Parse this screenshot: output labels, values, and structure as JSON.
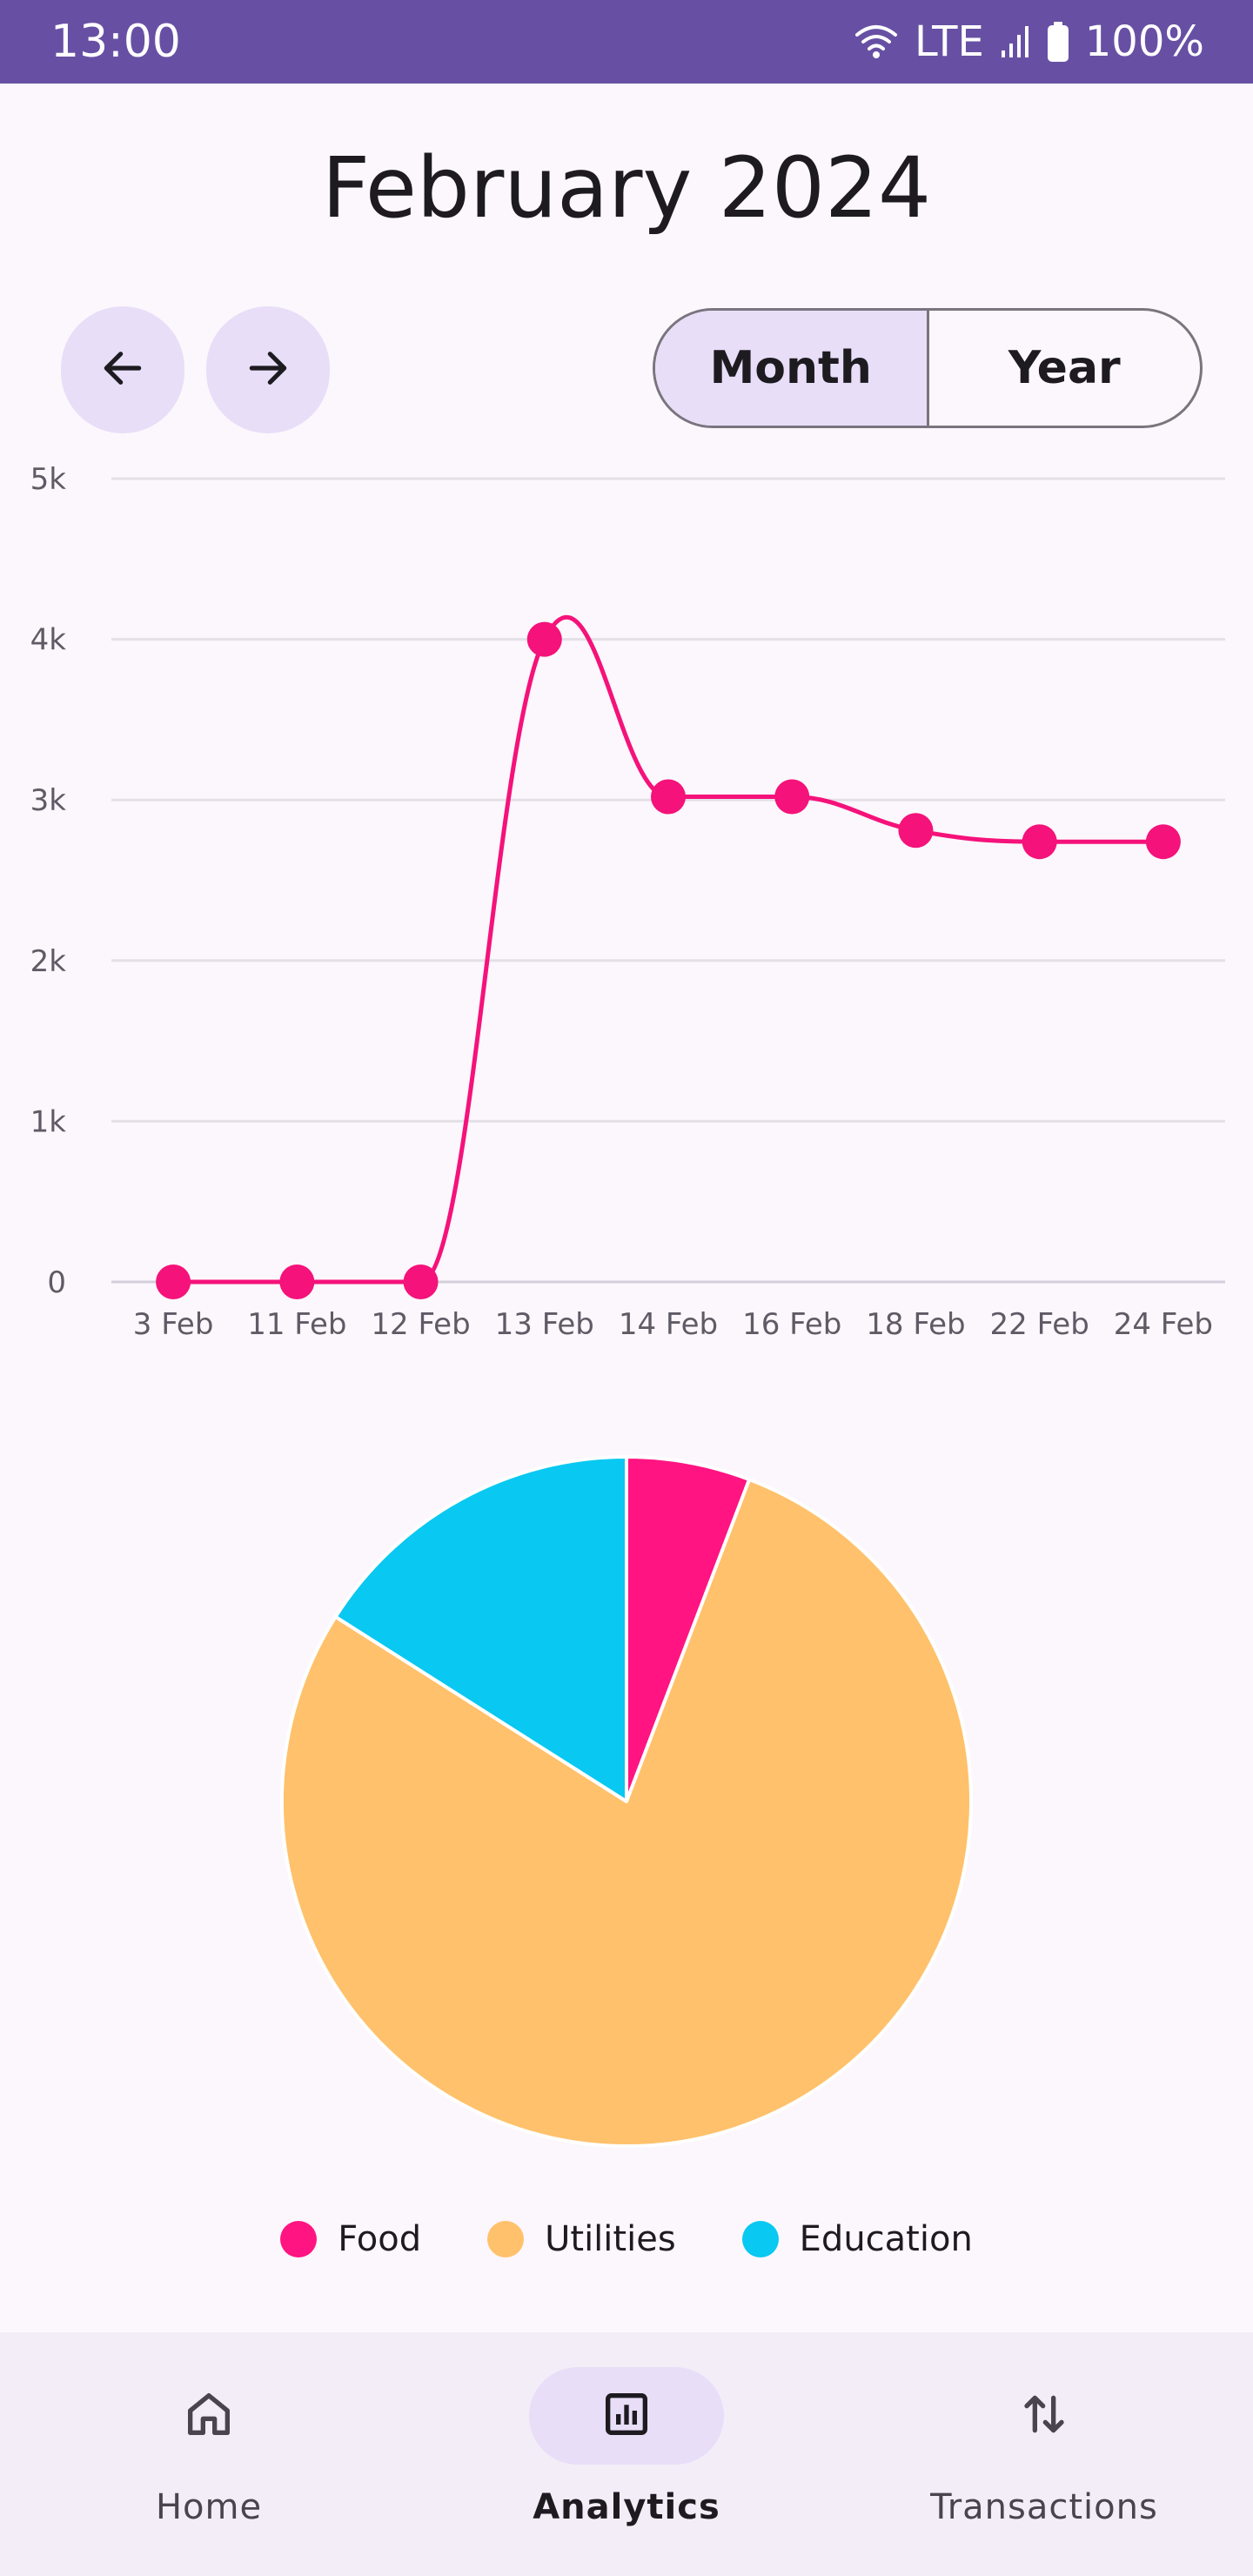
{
  "status_bar": {
    "time": "13:00",
    "network": "LTE",
    "battery": "100%",
    "icons": [
      "wifi-icon",
      "signal-icon",
      "battery-icon"
    ]
  },
  "header": {
    "title": "February 2024"
  },
  "nav_buttons": {
    "prev_icon": "arrow-left-icon",
    "next_icon": "arrow-right-icon"
  },
  "period_toggle": {
    "options": [
      "Month",
      "Year"
    ],
    "selected": "Month"
  },
  "chart_data": [
    {
      "type": "line",
      "categories": [
        "3 Feb",
        "11 Feb",
        "12 Feb",
        "13 Feb",
        "14 Feb",
        "16 Feb",
        "18 Feb",
        "22 Feb",
        "24 Feb"
      ],
      "values": [
        0,
        0,
        0,
        4000,
        3020,
        3020,
        2810,
        2740,
        2740
      ],
      "y_ticks": [
        "0",
        "1k",
        "2k",
        "3k",
        "4k",
        "5k"
      ],
      "ylim": [
        0,
        5000
      ],
      "grid": true,
      "smooth": true,
      "color": "#F5127A"
    },
    {
      "type": "pie",
      "series": [
        {
          "name": "Food",
          "value": 5.8,
          "color": "#FF1481"
        },
        {
          "name": "Utilities",
          "value": 78.2,
          "color": "#FFC16B"
        },
        {
          "name": "Education",
          "value": 16.0,
          "color": "#09C8F1"
        }
      ],
      "legend_position": "bottom"
    }
  ],
  "legend": [
    {
      "label": "Food",
      "color": "#FF1481"
    },
    {
      "label": "Utilities",
      "color": "#FFC16B"
    },
    {
      "label": "Education",
      "color": "#09C8F1"
    }
  ],
  "bottom_nav": {
    "items": [
      {
        "label": "Home",
        "icon": "home-icon",
        "active": false
      },
      {
        "label": "Analytics",
        "icon": "analytics-icon",
        "active": true
      },
      {
        "label": "Transactions",
        "icon": "swap-vertical-icon",
        "active": false
      }
    ]
  }
}
